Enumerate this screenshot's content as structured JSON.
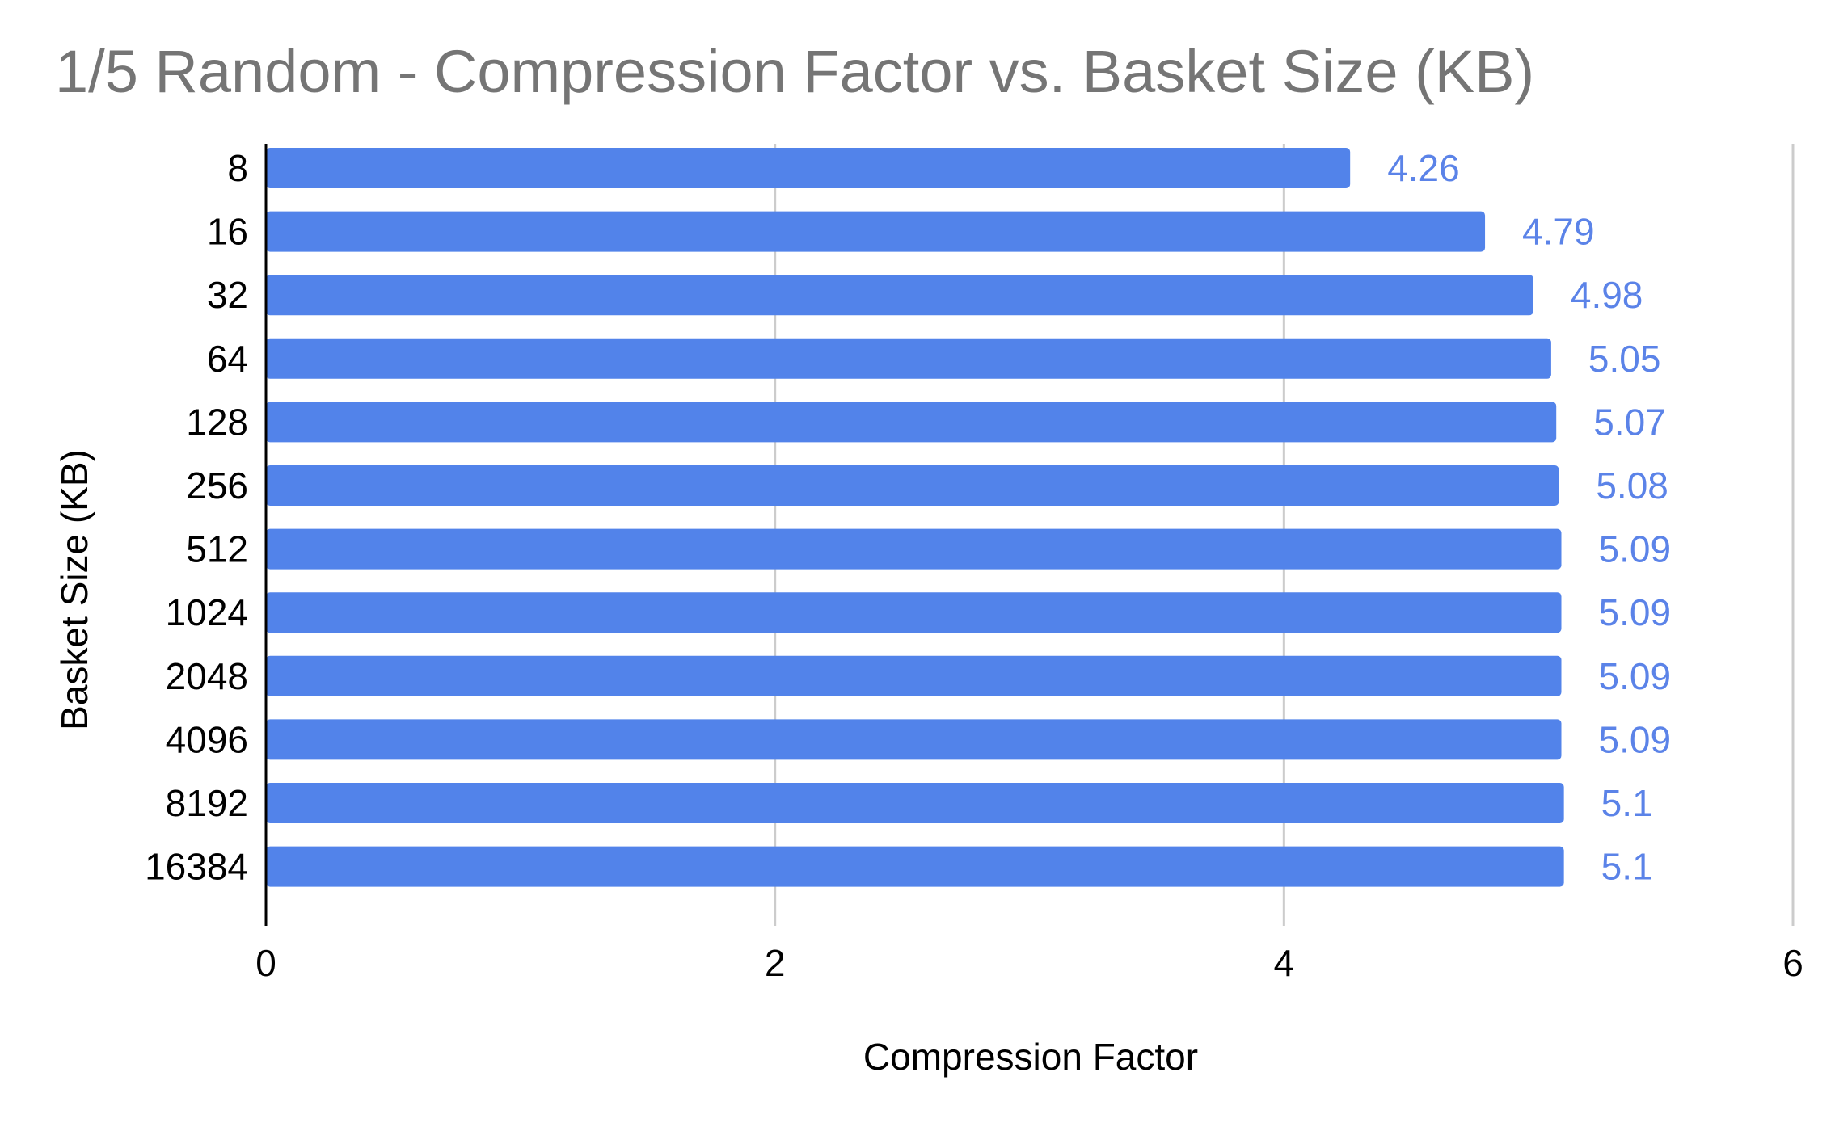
{
  "chart_data": {
    "type": "bar",
    "orientation": "horizontal",
    "title": "1/5 Random - Compression Factor vs. Basket Size (KB)",
    "xlabel": "Compression Factor",
    "ylabel": "Basket Size (KB)",
    "categories": [
      "8",
      "16",
      "32",
      "64",
      "128",
      "256",
      "512",
      "1024",
      "2048",
      "4096",
      "8192",
      "16384"
    ],
    "values": [
      4.26,
      4.79,
      4.98,
      5.05,
      5.07,
      5.08,
      5.09,
      5.09,
      5.09,
      5.09,
      5.1,
      5.1
    ],
    "data_labels": [
      "4.26",
      "4.79",
      "4.98",
      "5.05",
      "5.07",
      "5.08",
      "5.09",
      "5.09",
      "5.09",
      "5.09",
      "5.1",
      "5.1"
    ],
    "xlim": [
      0,
      6
    ],
    "xticks": [
      0,
      2,
      4,
      6
    ],
    "xtick_labels": [
      "0",
      "2",
      "4",
      "6"
    ],
    "grid": true,
    "legend": "none",
    "colors": {
      "bar": "#5283ea",
      "data_label": "#5b83e8",
      "title": "#757575",
      "gridline": "#cccccc",
      "axis": "#000000"
    }
  }
}
